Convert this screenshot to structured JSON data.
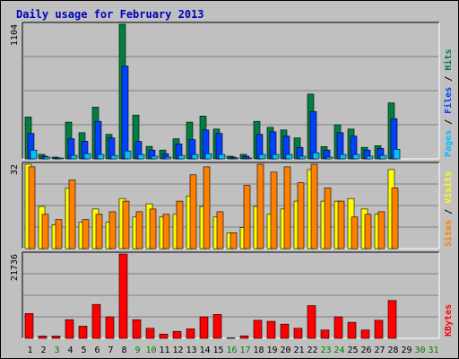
{
  "title": "Daily usage for February 2013",
  "colors": {
    "background": "#c0c0c0",
    "plot": "#c0c0c0",
    "grid": "#808080",
    "title": "#0000c0",
    "hits": "#008040",
    "files": "#0040ff",
    "pages": "#00c0ff",
    "visits": "#ffff00",
    "sites": "#ff8000",
    "kbytes": "#ff0000",
    "weekday": "#000000",
    "weekend": "#008000"
  },
  "chart_data": [
    {
      "type": "bar",
      "name": "hits-files-pages",
      "ymax_label": "1104",
      "ylim": [
        0,
        1104
      ],
      "legend": [
        {
          "key": "pages",
          "label": "Pages"
        },
        {
          "key": "sep",
          "label": " / "
        },
        {
          "key": "files",
          "label": "Files"
        },
        {
          "key": "sep",
          "label": " / "
        },
        {
          "key": "hits",
          "label": "Hits"
        }
      ],
      "series": [
        {
          "key": "hits",
          "values": [
            344,
            37,
            15,
            301,
            215,
            424,
            201,
            1104,
            359,
            102,
            72,
            165,
            301,
            351,
            244,
            22,
            37,
            308,
            258,
            237,
            172,
            531,
            101,
            280,
            244,
            94,
            108,
            459
          ]
        },
        {
          "key": "files",
          "values": [
            208,
            22,
            7,
            165,
            144,
            308,
            172,
            761,
            143,
            72,
            43,
            122,
            158,
            237,
            208,
            15,
            22,
            201,
            222,
            187,
            94,
            388,
            72,
            215,
            187,
            72,
            86,
            330
          ]
        },
        {
          "key": "pages",
          "values": [
            72,
            15,
            7,
            29,
            43,
            36,
            29,
            65,
            36,
            22,
            15,
            29,
            36,
            43,
            36,
            7,
            7,
            36,
            36,
            36,
            22,
            50,
            15,
            36,
            36,
            22,
            29,
            79
          ]
        }
      ]
    },
    {
      "type": "bar",
      "name": "visits-sites",
      "ymax_label": "32",
      "ylim": [
        0,
        32
      ],
      "legend": [
        {
          "key": "sites",
          "label": "Sites"
        },
        {
          "key": "sep",
          "label": " / "
        },
        {
          "key": "visits",
          "label": "Visits"
        }
      ],
      "series": [
        {
          "key": "visits",
          "values": [
            32,
            16,
            9,
            23,
            10,
            15,
            10,
            19,
            12,
            17,
            12,
            13,
            20,
            16,
            12,
            6,
            8,
            16,
            13,
            15,
            18,
            30,
            18,
            18,
            19,
            15,
            13,
            30
          ]
        },
        {
          "key": "sites",
          "values": [
            31,
            13,
            11,
            26,
            11,
            13,
            14,
            18,
            14,
            15,
            13,
            18,
            28,
            31,
            14,
            6,
            24,
            32,
            29,
            31,
            25,
            32,
            23,
            18,
            12,
            13,
            14,
            23
          ]
        }
      ]
    },
    {
      "type": "bar",
      "name": "kbytes",
      "ymax_label": "21736",
      "ylim": [
        0,
        21736
      ],
      "legend": [
        {
          "key": "kbytes",
          "label": "KBytes"
        }
      ],
      "series": [
        {
          "key": "kbytes",
          "values": [
            6400,
            600,
            600,
            4800,
            3150,
            8750,
            5550,
            21736,
            4800,
            2600,
            1100,
            1800,
            2450,
            5550,
            6150,
            150,
            650,
            4650,
            4400,
            3650,
            2600,
            8450,
            2150,
            5550,
            4150,
            2150,
            4650,
            9750
          ]
        }
      ]
    }
  ],
  "days": [
    {
      "label": "1",
      "weekend": false
    },
    {
      "label": "2",
      "weekend": false
    },
    {
      "label": "3",
      "weekend": true
    },
    {
      "label": "4",
      "weekend": false
    },
    {
      "label": "5",
      "weekend": false
    },
    {
      "label": "6",
      "weekend": false
    },
    {
      "label": "7",
      "weekend": false
    },
    {
      "label": "8",
      "weekend": false
    },
    {
      "label": "9",
      "weekend": true
    },
    {
      "label": "10",
      "weekend": true
    },
    {
      "label": "11",
      "weekend": false
    },
    {
      "label": "12",
      "weekend": false
    },
    {
      "label": "13",
      "weekend": false
    },
    {
      "label": "14",
      "weekend": false
    },
    {
      "label": "15",
      "weekend": false
    },
    {
      "label": "16",
      "weekend": true
    },
    {
      "label": "17",
      "weekend": true
    },
    {
      "label": "18",
      "weekend": false
    },
    {
      "label": "19",
      "weekend": false
    },
    {
      "label": "20",
      "weekend": false
    },
    {
      "label": "21",
      "weekend": false
    },
    {
      "label": "22",
      "weekend": false
    },
    {
      "label": "23",
      "weekend": true
    },
    {
      "label": "24",
      "weekend": true
    },
    {
      "label": "25",
      "weekend": false
    },
    {
      "label": "26",
      "weekend": false
    },
    {
      "label": "27",
      "weekend": false
    },
    {
      "label": "28",
      "weekend": false
    },
    {
      "label": "29",
      "weekend": false
    },
    {
      "label": "30",
      "weekend": true
    },
    {
      "label": "31",
      "weekend": true
    }
  ]
}
